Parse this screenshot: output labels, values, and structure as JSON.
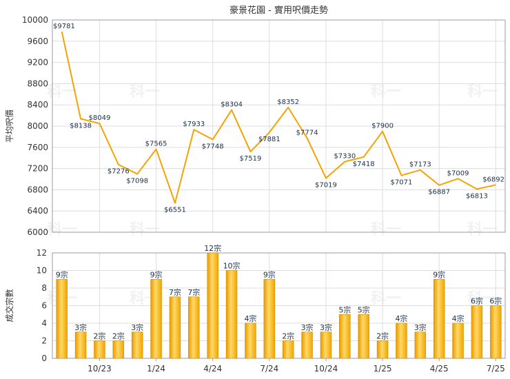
{
  "chart_data": [
    {
      "type": "line",
      "title": "豪景花園 - 實用呎價走勢",
      "ylabel": "平均呎價",
      "ylim": [
        6000,
        10000
      ],
      "yticks": [
        6000,
        6400,
        6800,
        7200,
        7600,
        8000,
        8400,
        8800,
        9200,
        9600,
        10000
      ],
      "label_prefix": "$",
      "color": "#f5a300",
      "grid": true,
      "values": [
        9781,
        8138,
        8049,
        7276,
        7098,
        7565,
        6551,
        7933,
        7748,
        8304,
        7519,
        7881,
        8352,
        7774,
        7019,
        7330,
        7418,
        7900,
        7071,
        7173,
        6887,
        7009,
        6813,
        6892
      ],
      "x_index": [
        0,
        1,
        2,
        3,
        4,
        5,
        6,
        7,
        8,
        9,
        10,
        11,
        12,
        13,
        14,
        15,
        16,
        17,
        18,
        19,
        20,
        21,
        22,
        23
      ],
      "point_labels": [
        "$9781",
        "$8138",
        "$8049",
        "$7276",
        "$7098",
        "$7565",
        "$6551",
        "$7933",
        "$7748",
        "$8304",
        "$7519",
        "$7881",
        "$8352",
        "$7774",
        "$7019",
        "$7330",
        "$7418",
        "$7900",
        "$7071",
        "$7173",
        "$6887",
        "$7009",
        "$6813",
        "$6892"
      ]
    },
    {
      "type": "bar",
      "ylabel": "成交宗數",
      "ylim": [
        0,
        12
      ],
      "yticks": [
        0,
        2,
        4,
        6,
        8,
        10,
        12
      ],
      "color": "#f5b000",
      "grid": true,
      "values": [
        9,
        3,
        2,
        2,
        3,
        9,
        7,
        7,
        12,
        10,
        4,
        9,
        2,
        3,
        3,
        5,
        5,
        2,
        4,
        3,
        9,
        4,
        6,
        6
      ],
      "bar_labels": [
        "9宗",
        "3宗",
        "2宗",
        "2宗",
        "3宗",
        "9宗",
        "7宗",
        "7宗",
        "12宗",
        "10宗",
        "4宗",
        "9宗",
        "2宗",
        "3宗",
        "3宗",
        "5宗",
        "5宗",
        "2宗",
        "4宗",
        "3宗",
        "9宗",
        "4宗",
        "6宗",
        "6宗"
      ],
      "xtick_labels": [
        "10/23",
        "1/24",
        "4/24",
        "7/24",
        "10/24",
        "1/25",
        "4/25",
        "7/25"
      ]
    }
  ],
  "watermark_text": "科一"
}
